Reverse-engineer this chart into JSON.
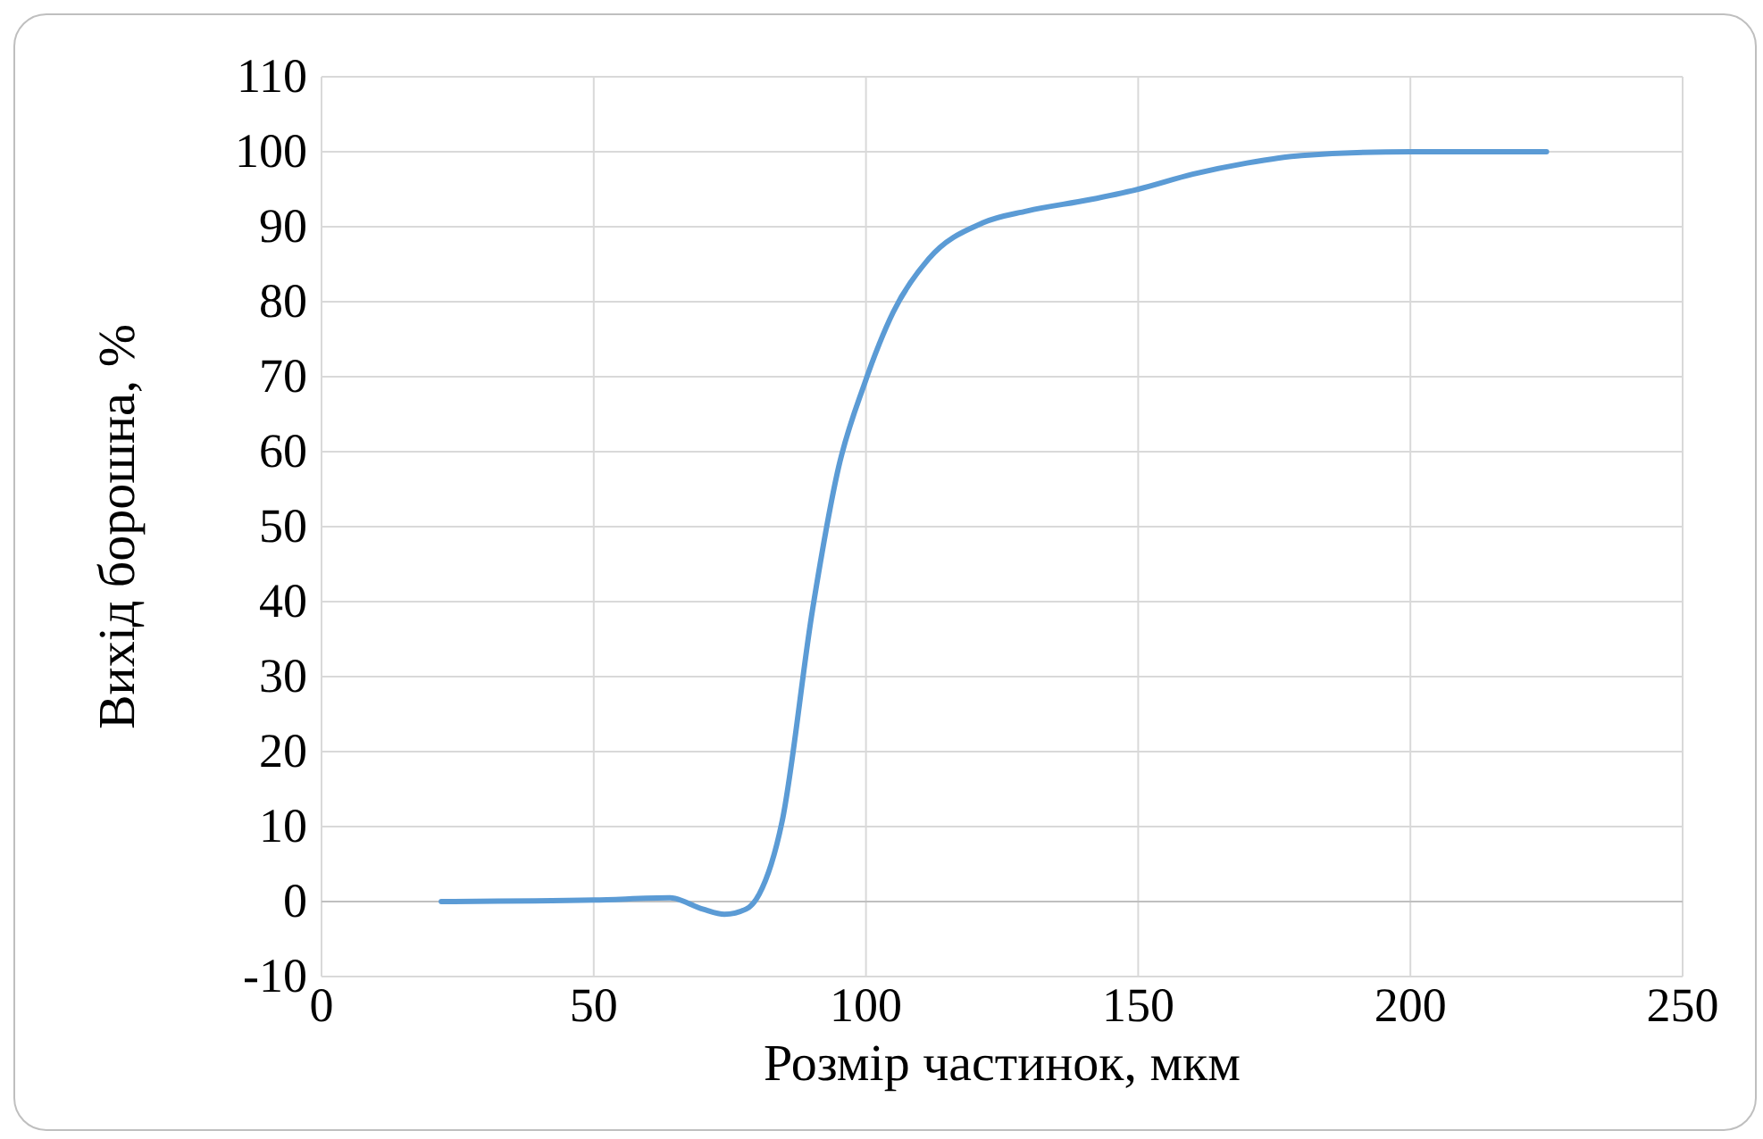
{
  "chart_data": {
    "type": "line",
    "xlabel": "Розмір частинок, мкм",
    "ylabel": "Вихід борошна, %",
    "series": [
      {
        "color": "#5b9bd5",
        "x": [
          22,
          50,
          64,
          70,
          74,
          78,
          80.4,
          84.6,
          90.2,
          95,
          99.7,
          105,
          111.5,
          121.4,
          129.6,
          141,
          150,
          160,
          170,
          180,
          200,
          225
        ],
        "values": [
          0,
          0.2,
          0.5,
          -1,
          -1.7,
          -1,
          1,
          10.7,
          39,
          58,
          69,
          78.6,
          85.7,
          90.5,
          92.1,
          93.6,
          95,
          97,
          98.5,
          99.5,
          100,
          100
        ]
      }
    ],
    "xlim": [
      0,
      250
    ],
    "xticks": [
      0,
      50,
      100,
      150,
      200,
      250
    ],
    "ylim": [
      -10,
      110
    ],
    "yticks": [
      -10,
      0,
      10,
      20,
      30,
      40,
      50,
      60,
      70,
      80,
      90,
      100,
      110
    ],
    "grid": true,
    "marker": "none",
    "line_style": "solid"
  }
}
